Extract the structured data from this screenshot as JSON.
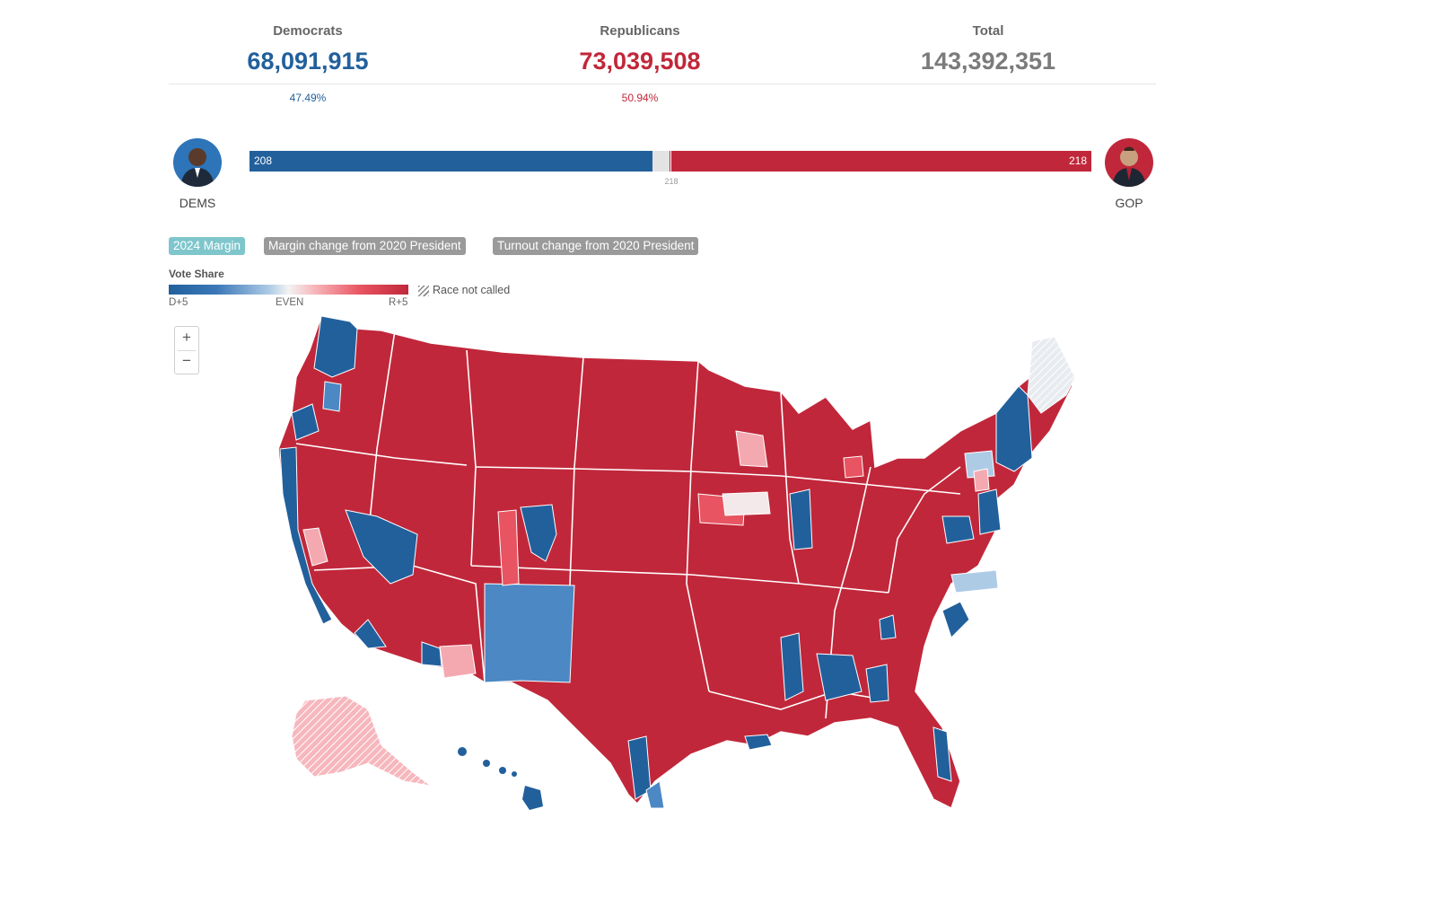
{
  "totals": {
    "dem": {
      "label": "Democrats",
      "value": "68,091,915",
      "pct": "47.49%"
    },
    "rep": {
      "label": "Republicans",
      "value": "73,039,508",
      "pct": "50.94%"
    },
    "total": {
      "label": "Total",
      "value": "143,392,351"
    }
  },
  "seats": {
    "dem_label": "DEMS",
    "rep_label": "GOP",
    "dem": 208,
    "rep": 218,
    "total": 435,
    "dem_text": "208",
    "rep_text": "218",
    "majority_text": "218"
  },
  "tabs": [
    {
      "label": "2024 Margin",
      "color": "#7fc6cc",
      "active": true
    },
    {
      "label": "Margin change from 2020 President",
      "color": "#9a9a9a",
      "active": false
    },
    {
      "label": "Turnout change from 2020 President",
      "color": "#9a9a9a",
      "active": false
    }
  ],
  "legend": {
    "title": "Vote Share",
    "left": "D+5",
    "mid": "EVEN",
    "right": "R+5",
    "not_called": "Race not called"
  },
  "zoom": {
    "in": "+",
    "out": "−"
  },
  "colors": {
    "dem": "#22609c",
    "dem_light": "#4b88c4",
    "rep": "#c1273a",
    "rep_light": "#f4a9b0",
    "toss": "#f4e9ea",
    "border": "#ffffff"
  },
  "icons": {
    "avatar_dem": "person-avatar-icon",
    "avatar_rep": "person-avatar-icon"
  }
}
